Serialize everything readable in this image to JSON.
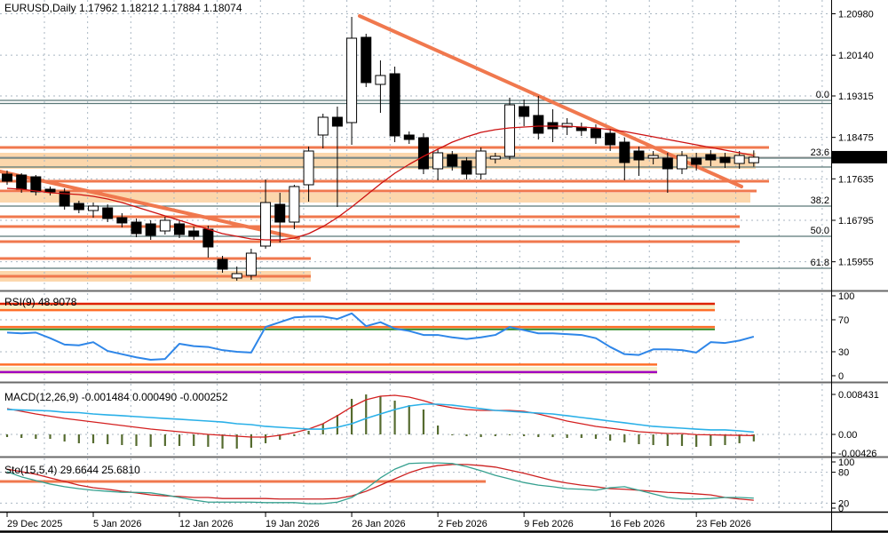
{
  "window": {
    "background": "#ffffff"
  },
  "colors": {
    "grid": "#a9b6c2",
    "orange_line": "#f0784e",
    "band_fill": "#fcd7ac",
    "fib": "#5a7878",
    "bid_line": "#999999",
    "candle_up": "#ffffff",
    "candle_down": "#000000",
    "candle_border": "#000000",
    "ma_red": "#cc1111",
    "rsi_blue": "#2e86e8",
    "level_red": "#dd2200",
    "level_orange": "#ff6f2a",
    "level_green": "#2e8b22",
    "level_purple": "#a000c0",
    "pale_band": "#f5efc9",
    "macd_hist": "#556b2f",
    "macd_red": "#d42020",
    "macd_cyan": "#2ab0e8",
    "sto_main": "#35a08f",
    "sto_signal": "#cc2020",
    "separator": "#6a6a6a",
    "badge_bg": "#000000",
    "badge_text": "#ffffff"
  },
  "time_axis": {
    "labels": [
      "29 Dec 2025",
      "5 Jan 2026",
      "12 Jan 2026",
      "19 Jan 2026",
      "26 Jan 2026",
      "2 Feb 2026",
      "9 Feb 2026",
      "16 Feb 2026",
      "23 Feb 2026"
    ],
    "label_bars": [
      0,
      6,
      12,
      18,
      24,
      30,
      36,
      42,
      48
    ]
  },
  "chart_data": [
    {
      "type": "candlestick",
      "panel": "main",
      "title": "EURUSD,Daily  1.17962 1.18212 1.17884 1.18074",
      "symbol": "EURUSD",
      "period": "Daily",
      "ohlc_current": {
        "open": 1.17962,
        "high": 1.18212,
        "low": 1.17884,
        "close": 1.18074
      },
      "current_price": "1.18074",
      "y_axis_labels": [
        "1.20980",
        "1.20140",
        "1.19315",
        "1.18475",
        "1.17635",
        "1.16795",
        "1.15955"
      ],
      "y_axis_values": [
        1.2098,
        1.2014,
        1.19315,
        1.18475,
        1.17635,
        1.16795,
        1.15955
      ],
      "ylim": [
        1.15373,
        1.21259
      ],
      "candles": [
        [
          1.17731,
          1.17803,
          1.17515,
          1.17587
        ],
        [
          1.17713,
          1.17749,
          1.17353,
          1.17425
        ],
        [
          1.17677,
          1.17713,
          1.17299,
          1.17371
        ],
        [
          1.17425,
          1.17479,
          1.17299,
          1.17371
        ],
        [
          1.17371,
          1.17443,
          1.17011,
          1.17083
        ],
        [
          1.17137,
          1.17191,
          1.16939,
          1.17011
        ],
        [
          1.16993,
          1.17155,
          1.16849,
          1.17083
        ],
        [
          1.17047,
          1.17119,
          1.16759,
          1.16831
        ],
        [
          1.16849,
          1.16939,
          1.16651,
          1.16741
        ],
        [
          1.16759,
          1.16831,
          1.16453,
          1.16525
        ],
        [
          1.16723,
          1.16795,
          1.16399,
          1.16489
        ],
        [
          1.16579,
          1.16867,
          1.16507,
          1.16795
        ],
        [
          1.16723,
          1.16795,
          1.16435,
          1.16507
        ],
        [
          1.16579,
          1.16669,
          1.16399,
          1.16471
        ],
        [
          1.16615,
          1.16687,
          1.16039,
          1.16255
        ],
        [
          1.16003,
          1.16075,
          1.15733,
          1.15805
        ],
        [
          1.15625,
          1.15859,
          1.15571,
          1.15715
        ],
        [
          1.15679,
          1.16219,
          1.15589,
          1.16129
        ],
        [
          1.16273,
          1.17623,
          1.16219,
          1.17155
        ],
        [
          1.17119,
          1.17353,
          1.16345,
          1.16759
        ],
        [
          1.16759,
          1.17515,
          1.16615,
          1.17479
        ],
        [
          1.17515,
          1.18289,
          1.17173,
          1.18199
        ],
        [
          1.18523,
          1.18955,
          1.18253,
          1.18883
        ],
        [
          1.18883,
          1.19099,
          1.17065,
          1.18703
        ],
        [
          1.18775,
          1.20917,
          1.18325,
          1.20485
        ],
        [
          1.20503,
          1.20575,
          1.19495,
          1.19585
        ],
        [
          1.19549,
          1.20035,
          1.18973,
          1.19729
        ],
        [
          1.19765,
          1.19909,
          1.18379,
          1.18505
        ],
        [
          1.18523,
          1.18595,
          1.18343,
          1.18433
        ],
        [
          1.18469,
          1.18559,
          1.17731,
          1.17839
        ],
        [
          1.17839,
          1.18235,
          1.17605,
          1.18163
        ],
        [
          1.18127,
          1.18199,
          1.17803,
          1.17893
        ],
        [
          1.18001,
          1.18073,
          1.17623,
          1.17731
        ],
        [
          1.17731,
          1.18271,
          1.17623,
          1.18199
        ],
        [
          1.18037,
          1.18163,
          1.17947,
          1.18091
        ],
        [
          1.18091,
          1.19279,
          1.18019,
          1.19135
        ],
        [
          1.19099,
          1.19243,
          1.18703,
          1.18901
        ],
        [
          1.18919,
          1.19315,
          1.18433,
          1.18559
        ],
        [
          1.18775,
          1.19045,
          1.18379,
          1.18649
        ],
        [
          1.18685,
          1.18865,
          1.18523,
          1.18757
        ],
        [
          1.18685,
          1.18775,
          1.18505,
          1.18613
        ],
        [
          1.18649,
          1.18739,
          1.18343,
          1.18469
        ],
        [
          1.18559,
          1.18649,
          1.18199,
          1.18325
        ],
        [
          1.18379,
          1.18469,
          1.17605,
          1.17965
        ],
        [
          1.18199,
          1.18289,
          1.17695,
          1.18019
        ],
        [
          1.18055,
          1.18199,
          1.17929,
          1.18109
        ],
        [
          1.18055,
          1.18163,
          1.17353,
          1.17839
        ],
        [
          1.17839,
          1.18199,
          1.17731,
          1.18109
        ],
        [
          1.18055,
          1.18163,
          1.17803,
          1.17929
        ],
        [
          1.18127,
          1.18217,
          1.17893,
          1.18019
        ],
        [
          1.18073,
          1.18163,
          1.17857,
          1.17965
        ],
        [
          1.17947,
          1.18199,
          1.17839,
          1.18109
        ],
        [
          1.17962,
          1.18212,
          1.17884,
          1.18074
        ]
      ],
      "ma_red": [
        1.17443,
        1.17425,
        1.17389,
        1.17353,
        1.17335,
        1.17317,
        1.17281,
        1.17227,
        1.17155,
        1.17065,
        1.16975,
        1.16885,
        1.16795,
        1.16705,
        1.16615,
        1.16525,
        1.16471,
        1.16417,
        1.16399,
        1.16399,
        1.16435,
        1.16525,
        1.16669,
        1.16849,
        1.17065,
        1.17299,
        1.17533,
        1.17749,
        1.17929,
        1.18091,
        1.18235,
        1.18379,
        1.18487,
        1.18577,
        1.18631,
        1.18667,
        1.18685,
        1.18703,
        1.18703,
        1.18703,
        1.18685,
        1.18667,
        1.18631,
        1.18595,
        1.18541,
        1.18487,
        1.18433,
        1.18379,
        1.18325,
        1.18271,
        1.18217,
        1.18163,
        1.18109
      ],
      "fib_levels": [
        {
          "label": "0.0",
          "price": 1.19225,
          "double": true
        },
        {
          "label": "23.6",
          "price": 1.18055,
          "second_price": 1.17875
        },
        {
          "label": "38.2",
          "price": 1.17083
        },
        {
          "label": "50.0",
          "price": 1.16471
        },
        {
          "label": "61.8",
          "price": 1.15823
        }
      ],
      "bid_line_price": 1.18074,
      "orange_lines": [
        {
          "price": 1.18271,
          "x_end": 866
        },
        {
          "price": 1.17587,
          "x_end": 866
        },
        {
          "price": 1.17389,
          "x_end": 852
        },
        {
          "price": 1.16867,
          "x_end": 833
        },
        {
          "price": 1.16669,
          "x_end": 833
        },
        {
          "price": 1.16363,
          "x_end": 833
        },
        {
          "price": 1.16021,
          "x_end": 350
        },
        {
          "price": 1.15661,
          "x_end": 350
        }
      ],
      "bands": [
        {
          "price_top": 1.18163,
          "price_bottom": 1.17839,
          "x_end": 851
        },
        {
          "price_top": 1.17353,
          "price_bottom": 1.17155,
          "x_end": 845
        },
        {
          "price_top": 1.15769,
          "price_bottom": 1.15553,
          "x_end": 350
        }
      ],
      "trendlines": [
        {
          "x1": 0,
          "price1": 1.17785,
          "x2": 336,
          "price2": 1.16435
        },
        {
          "x1": 405,
          "price1": 1.20935,
          "x2": 835,
          "price2": 1.17479
        }
      ]
    },
    {
      "type": "line",
      "panel": "rsi",
      "title": "RSI(9) 48.9078",
      "indicator": "RSI",
      "period_param": 9,
      "current_value": 48.9078,
      "y_axis_labels": [
        "100",
        "70",
        "30",
        "0"
      ],
      "y_axis_values": [
        100,
        70,
        30,
        0
      ],
      "grid_levels": [
        70,
        30
      ],
      "ylim": [
        -6.7,
        103.3
      ],
      "values": [
        54,
        53,
        54,
        47,
        39,
        38,
        42,
        31,
        27,
        23,
        20,
        21,
        40,
        37,
        36,
        32,
        30,
        29,
        61,
        67,
        73,
        74,
        74,
        71,
        78,
        62,
        67,
        59,
        56,
        51,
        51,
        48,
        46,
        48,
        51,
        61,
        57,
        53,
        53,
        52,
        51,
        47,
        36,
        27,
        26,
        33,
        33,
        32,
        29,
        42,
        41,
        44,
        48.9
      ],
      "levels": [
        {
          "value": 90,
          "color": "level_red",
          "width": 2.5,
          "x_end": 805
        },
        {
          "value": 82,
          "color": "level_orange",
          "width": 2.5,
          "x_end": 805
        },
        {
          "value": 61,
          "color": "level_orange",
          "width": 2.5,
          "x_end": 805
        },
        {
          "value": 58,
          "color": "level_green",
          "width": 2,
          "x_end": 805
        },
        {
          "value": 14,
          "color": "level_orange",
          "width": 2.5,
          "x_end": 740
        },
        {
          "value": 4.5,
          "color": "level_purple",
          "width": 2.5,
          "x_end": 740
        }
      ],
      "level_bands": [
        {
          "from": 90,
          "to": 82,
          "x_end": 805
        },
        {
          "from": 11,
          "to": 2,
          "x_end": 740
        }
      ]
    },
    {
      "type": "macd",
      "panel": "macd",
      "title": "MACD(12,26,9) -0.001484 0.000490 -0.000252",
      "indicator": "MACD",
      "params": [
        12,
        26,
        9
      ],
      "current_values": [
        -0.001484,
        0.00049,
        -0.000252
      ],
      "y_axis_labels": [
        "0.008431",
        "0.00",
        "-0.00426"
      ],
      "y_axis_values": [
        0.008431,
        0,
        -0.00426
      ],
      "grid_levels": [
        0
      ],
      "ylim": [
        -0.0044976,
        0.010682
      ],
      "histogram": [
        -0.00056,
        -0.00075,
        -0.00094,
        -0.00094,
        -0.0015,
        -0.00187,
        -0.00187,
        -0.00206,
        -0.00225,
        -0.00244,
        -0.00262,
        -0.00244,
        -0.00244,
        -0.00244,
        -0.00262,
        -0.003,
        -0.003,
        -0.00281,
        -0.00187,
        -0.00112,
        -0.00037,
        0.00075,
        0.00225,
        0.00412,
        0.0075,
        0.00843,
        0.00806,
        0.00712,
        0.00618,
        0.00525,
        0.00187,
        -0.00019,
        -0.00037,
        -0.00056,
        -0.00037,
        -0.00019,
        -0.00037,
        -0.00056,
        -0.00056,
        -0.00075,
        -0.00075,
        -0.00094,
        -0.00131,
        -0.00169,
        -0.00206,
        -0.00225,
        -0.00244,
        -0.00244,
        -0.00262,
        -0.00244,
        -0.00225,
        -0.00187,
        -0.00148
      ],
      "macd_line": [
        0.00543,
        0.00487,
        0.00431,
        0.00384,
        0.00337,
        0.003,
        0.00262,
        0.00225,
        0.00187,
        0.0015,
        0.00112,
        0.00084,
        0.00056,
        0.00028,
        0,
        -0.00019,
        -0.00037,
        -0.00056,
        -0.00056,
        -0.00019,
        0.00037,
        0.00112,
        0.00225,
        0.00394,
        0.00581,
        0.00731,
        0.00806,
        0.00825,
        0.00787,
        0.00712,
        0.00618,
        0.00562,
        0.00525,
        0.00506,
        0.00506,
        0.00506,
        0.00487,
        0.00431,
        0.00356,
        0.00281,
        0.00225,
        0.00169,
        0.00131,
        0.00094,
        0.00056,
        0.00037,
        0.00019,
        0.00019,
        -5e-05,
        -0.0001,
        -0.00015,
        -0.0002,
        -0.00025
      ],
      "signal_line": [
        0.00525,
        0.00515,
        0.00506,
        0.00496,
        0.00468,
        0.00459,
        0.00431,
        0.00412,
        0.00394,
        0.00375,
        0.00356,
        0.00337,
        0.00319,
        0.003,
        0.00281,
        0.00262,
        0.00225,
        0.00206,
        0.00169,
        0.0015,
        0.00131,
        0.00112,
        0.00112,
        0.0015,
        0.00225,
        0.00337,
        0.00431,
        0.00525,
        0.006,
        0.00637,
        0.00637,
        0.00618,
        0.00581,
        0.00543,
        0.00506,
        0.00487,
        0.00468,
        0.0045,
        0.00431,
        0.00394,
        0.00356,
        0.00319,
        0.00281,
        0.00244,
        0.00206,
        0.00169,
        0.0015,
        0.00131,
        0.00112,
        0.00094,
        0.00094,
        0.00075,
        0.00049
      ]
    },
    {
      "type": "stochastic",
      "panel": "sto",
      "title": "Sto(15,5,4) 29.6644 25.6810",
      "indicator": "Stochastic",
      "params": [
        15,
        5,
        4
      ],
      "current_values": [
        29.6644,
        25.681
      ],
      "y_axis_labels": [
        "100",
        "80",
        "20",
        "0"
      ],
      "y_axis_values": [
        100,
        80,
        20,
        0
      ],
      "grid_levels": [
        80,
        20
      ],
      "ylim": [
        3.45,
        105.17
      ],
      "k_line": [
        81,
        71,
        64,
        57,
        52,
        48,
        45,
        43,
        41,
        41,
        40,
        36,
        31,
        26,
        22,
        22,
        22,
        22,
        21,
        21,
        21,
        19,
        19,
        22,
        31,
        48,
        69,
        86,
        97,
        98,
        98,
        97,
        91,
        83,
        74,
        67,
        60,
        55,
        52,
        48,
        47,
        45,
        50,
        52,
        45,
        38,
        31,
        28,
        28,
        29,
        31,
        31,
        29.7
      ],
      "d_line": [
        86,
        81,
        76,
        69,
        62,
        55,
        50,
        47,
        43,
        40,
        36,
        34,
        33,
        31,
        31,
        29,
        29,
        29,
        29,
        28,
        28,
        28,
        28,
        29,
        34,
        43,
        55,
        67,
        79,
        88,
        93,
        95,
        95,
        93,
        90,
        84,
        78,
        71,
        64,
        59,
        55,
        52,
        48,
        47,
        45,
        43,
        41,
        40,
        38,
        36,
        31,
        28,
        25.7
      ],
      "levels": [
        {
          "value": 62,
          "color": "orange_line",
          "width": 3,
          "x_end": 547
        }
      ]
    }
  ]
}
